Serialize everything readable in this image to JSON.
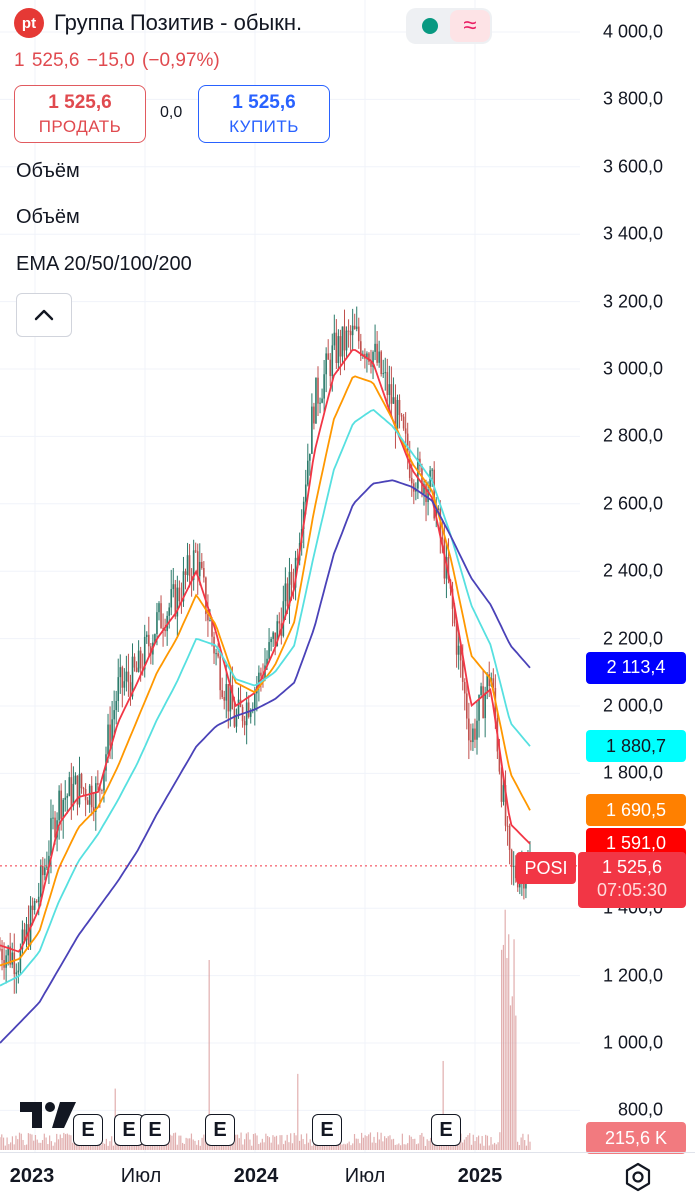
{
  "header": {
    "logo_text": "pt",
    "title": "Группа Позитив - обыкн.",
    "status_icons": [
      "market-open-dot-icon",
      "delayed-data-wave-icon"
    ]
  },
  "quote": {
    "last": "1 525,6",
    "change": "−15,0",
    "change_pct": "(−0,97%)"
  },
  "trade": {
    "sell_price": "1 525,6",
    "sell_label": "ПРОДАТЬ",
    "spread": "0,0",
    "buy_price": "1 525,6",
    "buy_label": "КУПИТЬ"
  },
  "indicators": [
    "Объём",
    "Объём",
    "EMA 20/50/100/200"
  ],
  "y_axis": {
    "ticks": [
      "4 000,0",
      "3 800,0",
      "3 600,0",
      "3 400,0",
      "3 200,0",
      "3 000,0",
      "2 800,0",
      "2 600,0",
      "2 400,0",
      "2 200,0",
      "2 000,0",
      "1 800,0",
      "1 400,0",
      "1 200,0",
      "1 000,0",
      "800,0"
    ],
    "tick_values": [
      4000,
      3800,
      3600,
      3400,
      3200,
      3000,
      2800,
      2600,
      2400,
      2200,
      2000,
      1800,
      1400,
      1200,
      1000,
      800
    ]
  },
  "price_labels": [
    {
      "text": "2 113,4",
      "value": 2113.4,
      "color": "#0000ff"
    },
    {
      "text": "1 880,7",
      "value": 1880.7,
      "color": "#00ffff",
      "text_color": "#131722"
    },
    {
      "text": "1 690,5",
      "value": 1690.5,
      "color": "#ff8000"
    },
    {
      "text": "1 591,0",
      "value": 1591.0,
      "color": "#ff0000"
    }
  ],
  "current_label": {
    "symbol": "POSI",
    "price": "1 525,6",
    "countdown": "07:05:30"
  },
  "volume_label": "215,6 K",
  "x_axis": [
    {
      "text": "2023",
      "bold": true
    },
    {
      "text": "Июл",
      "bold": false
    },
    {
      "text": "2024",
      "bold": true
    },
    {
      "text": "Июл",
      "bold": false
    },
    {
      "text": "2025",
      "bold": true
    }
  ],
  "earnings_badges": [
    "E",
    "E",
    "E",
    "E",
    "E",
    "E"
  ],
  "chart_data": {
    "type": "line",
    "ylim": [
      800,
      4000
    ],
    "series": [
      {
        "name": "Price",
        "color": "#9c6b6b",
        "x": [
          "2022-12",
          "2023-01",
          "2023-02",
          "2023-03",
          "2023-04",
          "2023-05",
          "2023-06",
          "2023-07",
          "2023-08",
          "2023-09",
          "2023-10",
          "2023-11",
          "2023-12",
          "2024-01",
          "2024-02",
          "2024-03",
          "2024-04",
          "2024-05",
          "2024-06",
          "2024-07",
          "2024-08",
          "2024-09",
          "2024-10",
          "2024-11",
          "2024-12",
          "2025-01",
          "2025-02",
          "2025-03"
        ],
        "values": [
          1280,
          1250,
          1450,
          1720,
          1760,
          1740,
          2050,
          2100,
          2250,
          2320,
          2450,
          2150,
          1950,
          2050,
          2200,
          2400,
          2900,
          3050,
          3100,
          3050,
          2900,
          2700,
          2650,
          2300,
          1900,
          2100,
          1500,
          1525.6
        ]
      },
      {
        "name": "EMA 20",
        "color": "#f23645",
        "values": [
          1290,
          1270,
          1400,
          1650,
          1730,
          1745,
          1950,
          2070,
          2200,
          2280,
          2400,
          2220,
          2000,
          2040,
          2170,
          2350,
          2750,
          2980,
          3060,
          3020,
          2850,
          2700,
          2620,
          2350,
          2000,
          2050,
          1650,
          1591.0
        ]
      },
      {
        "name": "EMA 50",
        "color": "#ff9800",
        "values": [
          1230,
          1250,
          1330,
          1520,
          1640,
          1700,
          1820,
          1960,
          2100,
          2200,
          2330,
          2240,
          2070,
          2040,
          2120,
          2250,
          2580,
          2850,
          2980,
          2960,
          2850,
          2720,
          2640,
          2430,
          2150,
          2080,
          1800,
          1690.5
        ]
      },
      {
        "name": "EMA 100",
        "color": "#56e0e0",
        "values": [
          1170,
          1200,
          1270,
          1420,
          1540,
          1620,
          1720,
          1830,
          1960,
          2070,
          2200,
          2180,
          2080,
          2060,
          2100,
          2180,
          2450,
          2700,
          2840,
          2880,
          2830,
          2750,
          2670,
          2500,
          2300,
          2180,
          1950,
          1880.7
        ]
      },
      {
        "name": "EMA 200",
        "color": "#4a42b8",
        "values": [
          1000,
          1060,
          1120,
          1220,
          1320,
          1400,
          1480,
          1570,
          1680,
          1780,
          1880,
          1940,
          1970,
          1990,
          2020,
          2070,
          2230,
          2450,
          2600,
          2660,
          2670,
          2650,
          2610,
          2500,
          2380,
          2300,
          2180,
          2113.4
        ]
      }
    ],
    "volume": {
      "color": "#d99a9a",
      "last": "215,6 K"
    }
  }
}
